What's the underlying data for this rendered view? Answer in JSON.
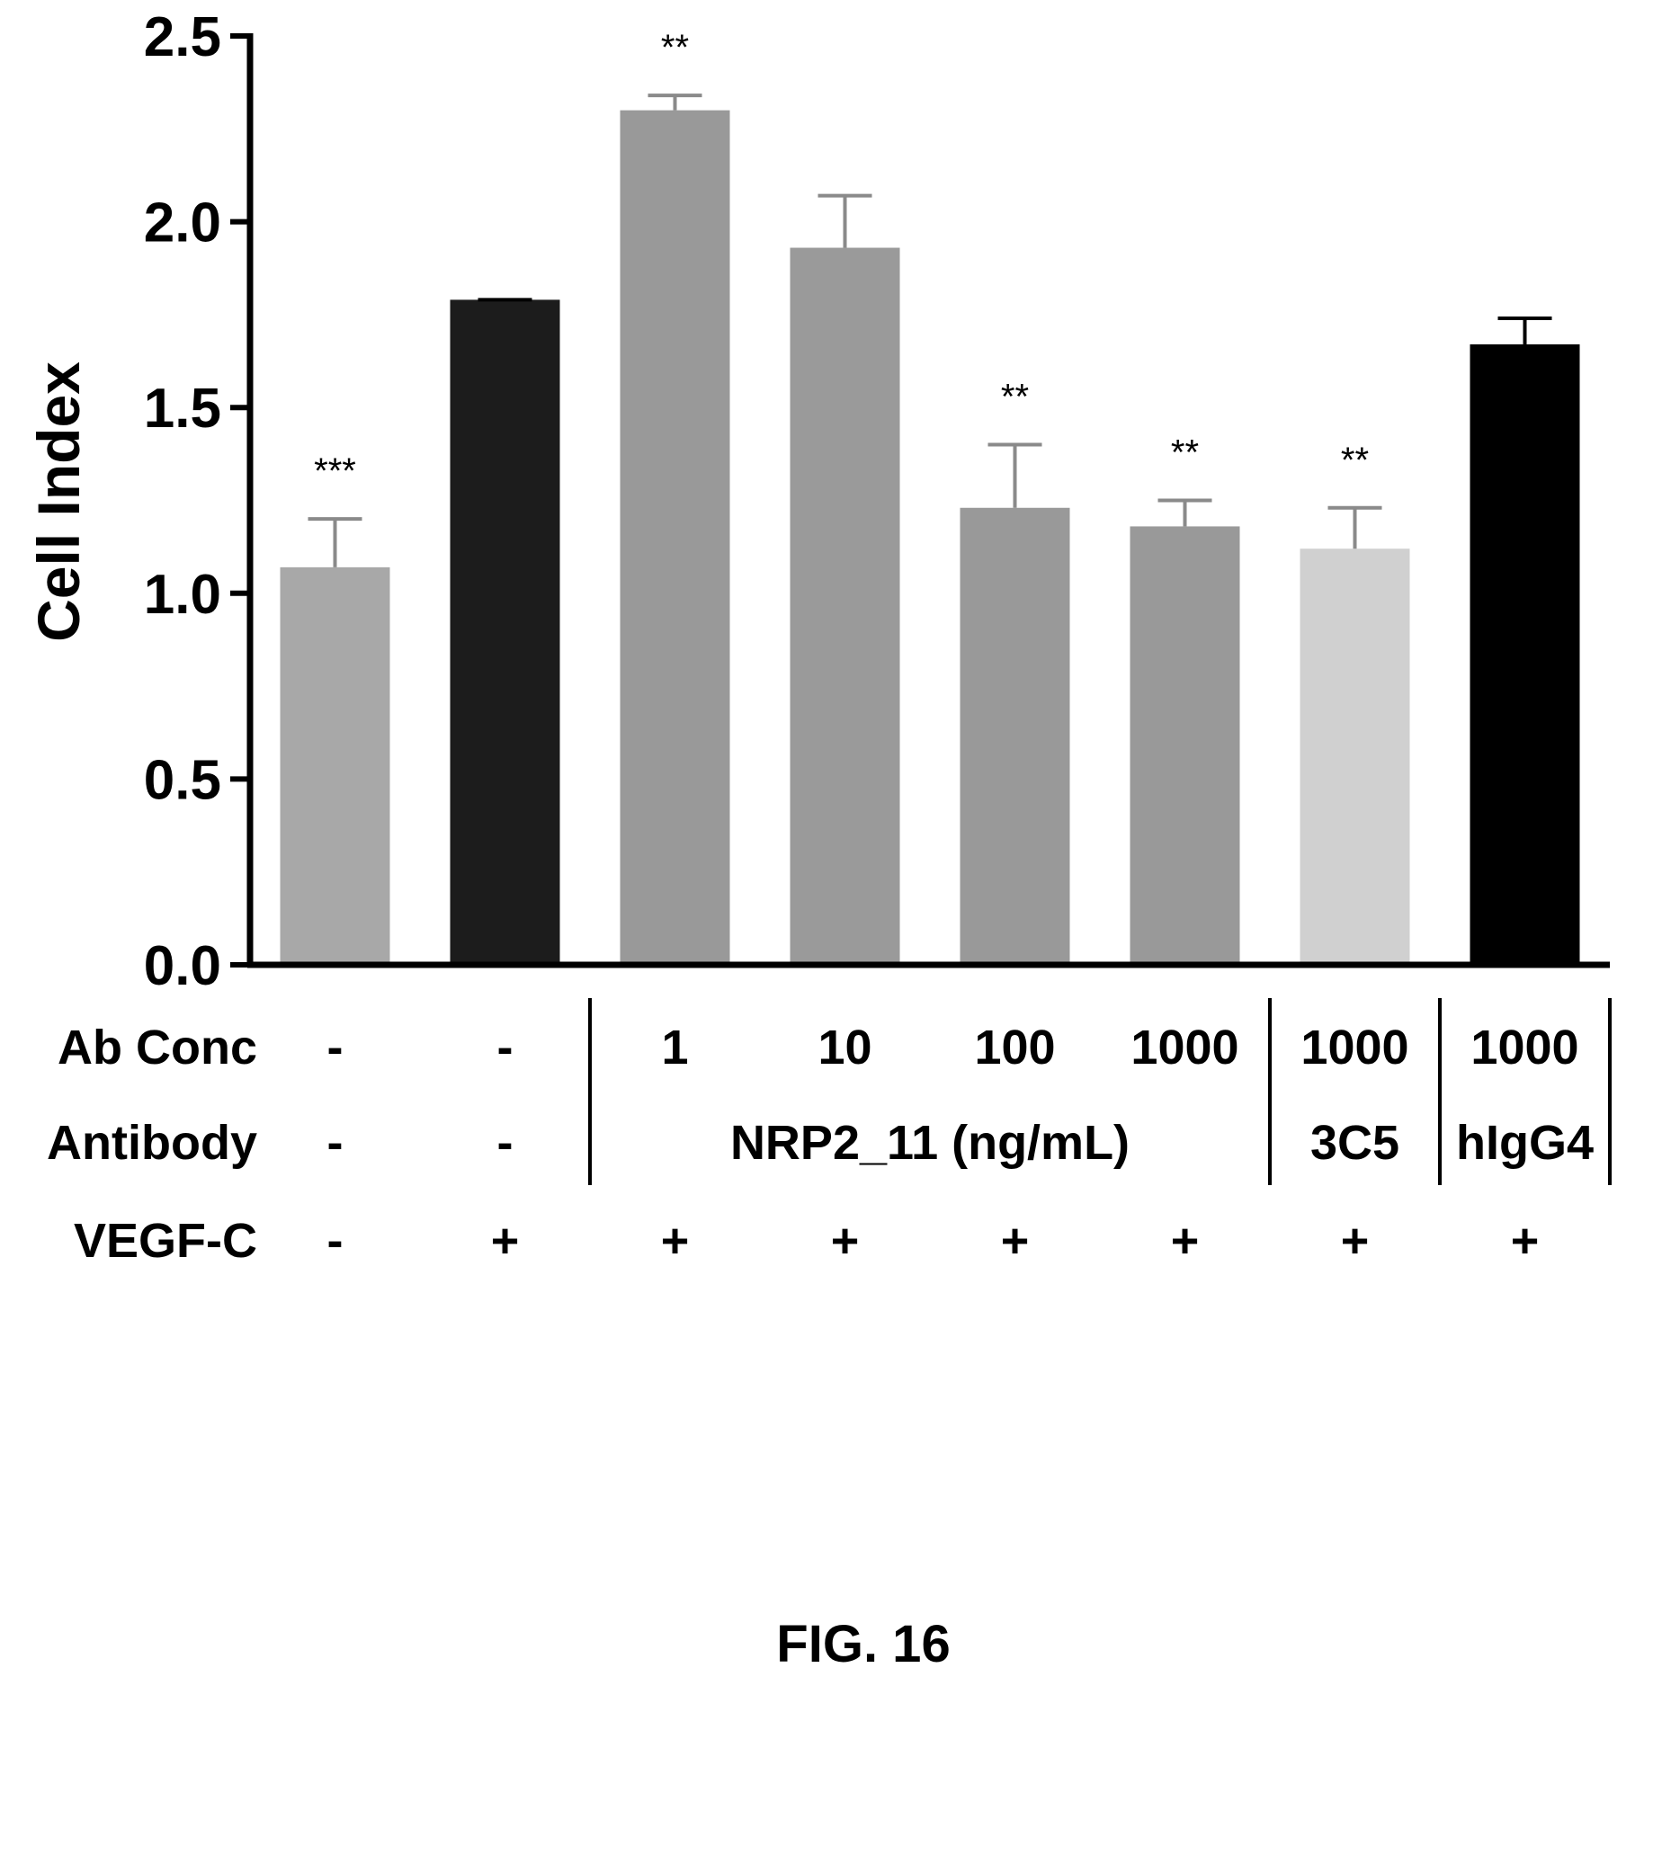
{
  "chart_data": {
    "type": "bar",
    "ylabel": "Cell Index",
    "ylim": [
      0,
      2.5
    ],
    "yticks": [
      "0.0",
      "0.5",
      "1.0",
      "1.5",
      "2.0",
      "2.5"
    ],
    "bars": [
      {
        "value": 1.07,
        "error": 0.13,
        "significance": "***",
        "color": "#a8a8a8"
      },
      {
        "value": 1.79,
        "error": 0.0,
        "significance": "",
        "color": "#1c1c1c"
      },
      {
        "value": 2.3,
        "error": 0.04,
        "significance": "**",
        "color": "#999999"
      },
      {
        "value": 1.93,
        "error": 0.14,
        "significance": "",
        "color": "#9a9a9a"
      },
      {
        "value": 1.23,
        "error": 0.17,
        "significance": "**",
        "color": "#999999"
      },
      {
        "value": 1.18,
        "error": 0.07,
        "significance": "**",
        "color": "#999999"
      },
      {
        "value": 1.12,
        "error": 0.11,
        "significance": "**",
        "color": "#d0d0d0"
      },
      {
        "value": 1.67,
        "error": 0.07,
        "significance": "",
        "color": "#000000"
      }
    ],
    "table": {
      "rows": [
        {
          "label": "Ab Conc",
          "values": [
            "-",
            "-",
            "1",
            "10",
            "100",
            "1000",
            "1000",
            "1000"
          ]
        },
        {
          "label": "Antibody",
          "values": [
            "-",
            "-",
            "",
            "",
            "",
            "",
            "3C5",
            "hIgG4"
          ],
          "group_label": "NRP2_11 (ng/mL)"
        },
        {
          "label": "VEGF-C",
          "values": [
            "-",
            "+",
            "+",
            "+",
            "+",
            "+",
            "+",
            "+"
          ]
        }
      ]
    }
  },
  "caption": "FIG. 16"
}
